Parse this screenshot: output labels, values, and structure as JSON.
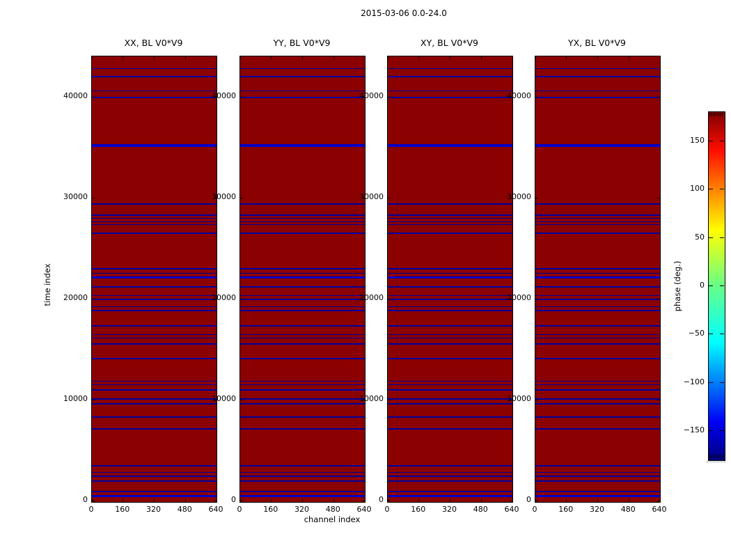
{
  "figure": {
    "suptitle": "2015-03-06 0.0-24.0",
    "xlabel": "channel index",
    "ylabel": "time index",
    "colorbar_label": "phase (deg.)"
  },
  "chart_data": {
    "type": "heatmap",
    "title": "2015-03-06 0.0-24.0",
    "panels": [
      {
        "title": "XX, BL V0*V9"
      },
      {
        "title": "YY, BL V0*V9"
      },
      {
        "title": "XY, BL V0*V9"
      },
      {
        "title": "YX, BL V0*V9"
      }
    ],
    "xlabel": "channel index",
    "ylabel": "time index",
    "x_ticks": [
      0,
      160,
      320,
      480,
      640
    ],
    "x_range": [
      0,
      640
    ],
    "y_ticks": [
      0,
      10000,
      20000,
      30000,
      40000
    ],
    "y_range": [
      0,
      44000
    ],
    "background_phase_deg": 180,
    "stripe_phase_deg": -180,
    "stripe_time_rows": [
      {
        "t": 42800,
        "w": 1
      },
      {
        "t": 42000,
        "w": 2
      },
      {
        "t": 40600,
        "w": 1
      },
      {
        "t": 39900,
        "w": 2
      },
      {
        "t": 35200,
        "w": 4,
        "bright": true
      },
      {
        "t": 29400,
        "w": 2
      },
      {
        "t": 28300,
        "w": 2
      },
      {
        "t": 27950,
        "w": 1
      },
      {
        "t": 27600,
        "w": 1
      },
      {
        "t": 27330,
        "w": 1
      },
      {
        "t": 26500,
        "w": 2
      },
      {
        "t": 23000,
        "w": 2
      },
      {
        "t": 22500,
        "w": 1
      },
      {
        "t": 22100,
        "w": 3,
        "bright": true
      },
      {
        "t": 21200,
        "w": 2
      },
      {
        "t": 20300,
        "w": 1
      },
      {
        "t": 19900,
        "w": 2
      },
      {
        "t": 19200,
        "w": 1
      },
      {
        "t": 18800,
        "w": 2
      },
      {
        "t": 17280,
        "w": 2
      },
      {
        "t": 16450,
        "w": 1
      },
      {
        "t": 16100,
        "w": 1
      },
      {
        "t": 15500,
        "w": 2
      },
      {
        "t": 14100,
        "w": 2
      },
      {
        "t": 11840,
        "w": 1
      },
      {
        "t": 11500,
        "w": 1
      },
      {
        "t": 11000,
        "w": 2
      },
      {
        "t": 10100,
        "w": 2
      },
      {
        "t": 9570,
        "w": 2
      },
      {
        "t": 8260,
        "w": 2
      },
      {
        "t": 7090,
        "w": 2
      },
      {
        "t": 3440,
        "w": 2
      },
      {
        "t": 2820,
        "w": 1
      },
      {
        "t": 2410,
        "w": 2
      },
      {
        "t": 1930,
        "w": 2
      },
      {
        "t": 895,
        "w": 2
      },
      {
        "t": 480,
        "w": 3,
        "bright": true
      }
    ],
    "colorbar": {
      "label": "phase (deg.)",
      "colormap": "jet",
      "range_deg": [
        -180,
        180
      ],
      "ticks": [
        150,
        100,
        50,
        0,
        -50,
        -100,
        -150
      ]
    },
    "colors": {
      "background": "#8b0000",
      "stripe": "#0000a0",
      "stripe_bright": "#0000c8"
    },
    "legend": "none",
    "grid": false
  }
}
